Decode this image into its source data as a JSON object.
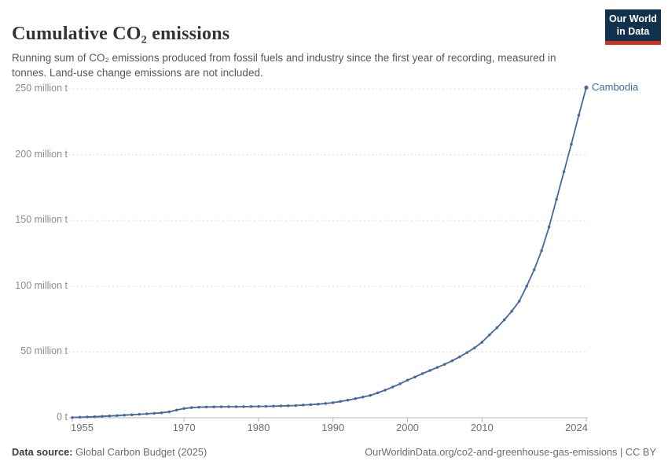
{
  "header": {
    "title": "Cumulative CO₂ emissions",
    "subtitle": "Running sum of CO₂ emissions produced from fossil fuels and industry since the first year of recording, measured in tonnes. Land-use change emissions are not included.",
    "logo": {
      "line1": "Our World",
      "line2": "in Data"
    }
  },
  "chart_data": {
    "type": "line",
    "title": "Cumulative CO₂ emissions",
    "unit": "million tonnes",
    "grid": "horizontal-dashed",
    "legend_position": "end-of-line-label",
    "xlim": [
      1955,
      2024
    ],
    "ylim": [
      0,
      250
    ],
    "x": [
      1955,
      1956,
      1957,
      1958,
      1959,
      1960,
      1961,
      1962,
      1963,
      1964,
      1965,
      1966,
      1967,
      1968,
      1969,
      1970,
      1971,
      1972,
      1973,
      1974,
      1975,
      1976,
      1977,
      1978,
      1979,
      1980,
      1981,
      1982,
      1983,
      1984,
      1985,
      1986,
      1987,
      1988,
      1989,
      1990,
      1991,
      1992,
      1993,
      1994,
      1995,
      1996,
      1997,
      1998,
      1999,
      2000,
      2001,
      2002,
      2003,
      2004,
      2005,
      2006,
      2007,
      2008,
      2009,
      2010,
      2011,
      2012,
      2013,
      2014,
      2015,
      2016,
      2017,
      2018,
      2019,
      2020,
      2021,
      2022,
      2023,
      2024
    ],
    "series": [
      {
        "name": "Cambodia",
        "color": "#44689f",
        "values": [
          0.15,
          0.35,
          0.6,
          0.8,
          1.05,
          1.3,
          1.6,
          1.95,
          2.3,
          2.65,
          3.0,
          3.35,
          3.75,
          4.5,
          5.8,
          7.0,
          7.7,
          8.0,
          8.15,
          8.25,
          8.3,
          8.35,
          8.4,
          8.45,
          8.5,
          8.6,
          8.7,
          8.8,
          8.95,
          9.1,
          9.3,
          9.6,
          9.95,
          10.35,
          10.85,
          11.4,
          12.4,
          13.4,
          14.5,
          15.7,
          17.0,
          18.9,
          21.0,
          23.3,
          25.8,
          28.5,
          31.0,
          33.5,
          35.9,
          38.2,
          40.6,
          43.3,
          46.3,
          49.6,
          53.1,
          57.4,
          63.0,
          68.4,
          74.4,
          81.0,
          88.6,
          100.0,
          112.5,
          127.0,
          145.0,
          166.0,
          187.0,
          208.0,
          230.0,
          251.0
        ]
      }
    ],
    "y_ticks": [
      {
        "value": 0,
        "label": "0 t"
      },
      {
        "value": 50,
        "label": "50 million t"
      },
      {
        "value": 100,
        "label": "100 million t"
      },
      {
        "value": 150,
        "label": "150 million t"
      },
      {
        "value": 200,
        "label": "200 million t"
      },
      {
        "value": 250,
        "label": "250 million t"
      }
    ],
    "x_ticks": [
      {
        "value": 1955,
        "label": "1955"
      },
      {
        "value": 1970,
        "label": "1970"
      },
      {
        "value": 1980,
        "label": "1980"
      },
      {
        "value": 1990,
        "label": "1990"
      },
      {
        "value": 2000,
        "label": "2000"
      },
      {
        "value": 2010,
        "label": "2010"
      },
      {
        "value": 2024,
        "label": "2024"
      }
    ]
  },
  "footer": {
    "datasource_label": "Data source:",
    "datasource_value": "Global Carbon Budget (2025)",
    "link": "OurWorldinData.org/co2-and-greenhouse-gas-emissions | CC BY"
  },
  "colors": {
    "series": "#44689f",
    "logo_navy": "#12314f",
    "logo_red": "#cf3222",
    "gridline": "#dddddd",
    "axis": "#b3b3b3",
    "title_text": "#333333",
    "subtitle_text": "#575757"
  }
}
